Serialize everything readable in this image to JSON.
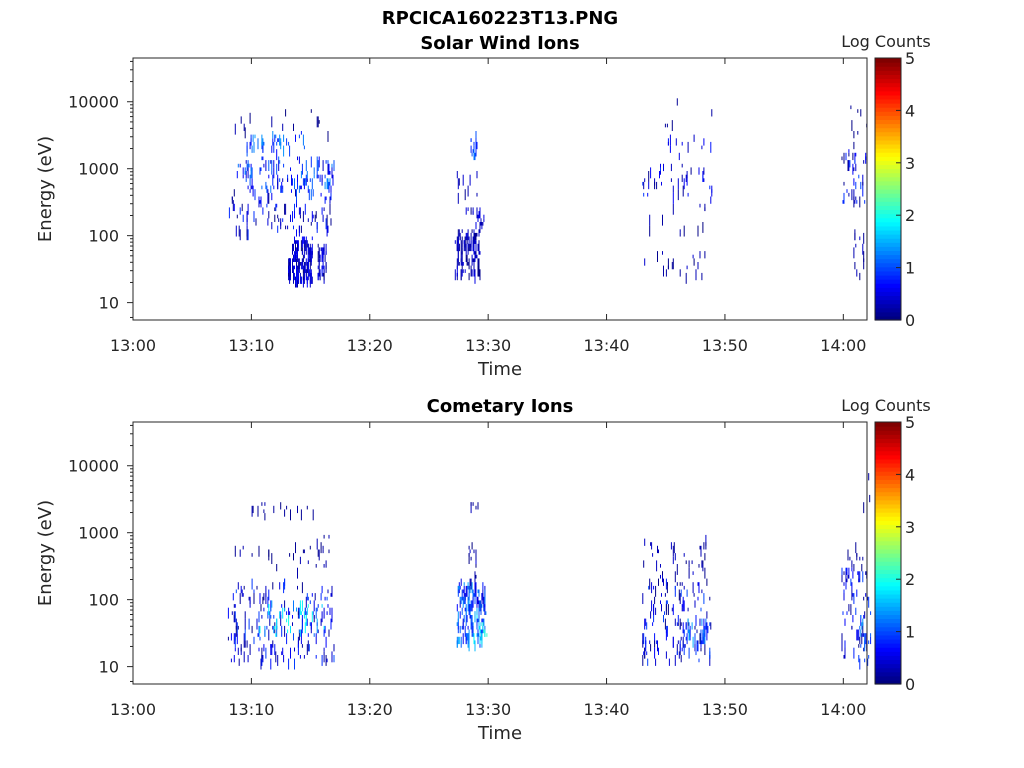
{
  "figure_title": "RPCICA160223T13.PNG",
  "colors": {
    "colormap": "jet",
    "axis": "#262626",
    "background": "#ffffff"
  },
  "chart_data": [
    {
      "type": "heatmap",
      "title": "Solar Wind Ions",
      "xlabel": "Time",
      "ylabel": "Energy (eV)",
      "yscale": "log",
      "xlim": [
        "13:00",
        "14:02"
      ],
      "ylim": [
        5.5,
        45000
      ],
      "x_ticks": [
        "13:00",
        "13:10",
        "13:20",
        "13:30",
        "13:40",
        "13:50",
        "14:00"
      ],
      "y_ticks": [
        "10",
        "100",
        "1000",
        "10000"
      ],
      "colorbar": {
        "label": "Log Counts",
        "range": [
          0,
          5
        ],
        "ticks": [
          "0",
          "1",
          "2",
          "3",
          "4",
          "5"
        ]
      },
      "clusters": [
        {
          "t": [
            13.1,
            13.3
          ],
          "e": [
            1.4,
            1.7
          ],
          "v": [
            0,
            0.6
          ],
          "n": 45
        },
        {
          "t": [
            13.4,
            15.1
          ],
          "e": [
            1.35,
            2.0
          ],
          "v": [
            0,
            0.7
          ],
          "n": 140
        },
        {
          "t": [
            15.6,
            16.3
          ],
          "e": [
            1.4,
            1.9
          ],
          "v": [
            0,
            0.7
          ],
          "n": 45
        },
        {
          "t": [
            8.0,
            17.0
          ],
          "e": [
            2.1,
            2.7
          ],
          "v": [
            0,
            0.9
          ],
          "n": 90
        },
        {
          "t": [
            8.5,
            17.0
          ],
          "e": [
            2.7,
            3.2
          ],
          "v": [
            0.3,
            1.3
          ],
          "n": 120
        },
        {
          "t": [
            9.5,
            14.5
          ],
          "e": [
            3.3,
            3.55
          ],
          "v": [
            0.6,
            1.4
          ],
          "n": 40
        },
        {
          "t": [
            8.0,
            16.5
          ],
          "e": [
            3.5,
            3.9
          ],
          "v": [
            0,
            0.3
          ],
          "n": 14
        },
        {
          "t": [
            27.2,
            29.3
          ],
          "e": [
            1.45,
            2.1
          ],
          "v": [
            0,
            0.5
          ],
          "n": 110
        },
        {
          "t": [
            28.1,
            29.6
          ],
          "e": [
            2.1,
            2.5
          ],
          "v": [
            0,
            0.5
          ],
          "n": 18
        },
        {
          "t": [
            28.5,
            29.0
          ],
          "e": [
            3.2,
            3.6
          ],
          "v": [
            0.5,
            1.3
          ],
          "n": 18
        },
        {
          "t": [
            27.3,
            29.3
          ],
          "e": [
            2.6,
            3.0
          ],
          "v": [
            0,
            0.4
          ],
          "n": 10
        },
        {
          "t": [
            43.0,
            48.5
          ],
          "e": [
            1.4,
            1.8
          ],
          "v": [
            0,
            0.4
          ],
          "n": 20
        },
        {
          "t": [
            43.5,
            48.5
          ],
          "e": [
            2.0,
            2.5
          ],
          "v": [
            0,
            0.3
          ],
          "n": 12
        },
        {
          "t": [
            43.0,
            49.0
          ],
          "e": [
            2.6,
            3.1
          ],
          "v": [
            0,
            0.9
          ],
          "n": 40
        },
        {
          "t": [
            44.5,
            49.0
          ],
          "e": [
            3.1,
            3.5
          ],
          "v": [
            0.2,
            0.8
          ],
          "n": 12
        },
        {
          "t": [
            44.0,
            49.0
          ],
          "e": [
            3.6,
            4.2
          ],
          "v": [
            0,
            0.2
          ],
          "n": 5
        },
        {
          "t": [
            59.8,
            62.0
          ],
          "e": [
            2.5,
            3.3
          ],
          "v": [
            0,
            1.0
          ],
          "n": 40
        },
        {
          "t": [
            60.8,
            61.8
          ],
          "e": [
            1.4,
            2.1
          ],
          "v": [
            0,
            0.4
          ],
          "n": 12
        },
        {
          "t": [
            60.5,
            62.0
          ],
          "e": [
            3.3,
            4.0
          ],
          "v": [
            0,
            0.2
          ],
          "n": 8
        }
      ]
    },
    {
      "type": "heatmap",
      "title": "Cometary Ions",
      "xlabel": "Time",
      "ylabel": "Energy (eV)",
      "yscale": "log",
      "xlim": [
        "13:00",
        "14:02"
      ],
      "ylim": [
        5.5,
        45000
      ],
      "x_ticks": [
        "13:00",
        "13:10",
        "13:20",
        "13:30",
        "13:40",
        "13:50",
        "14:00"
      ],
      "y_ticks": [
        "10",
        "100",
        "1000",
        "10000"
      ],
      "colorbar": {
        "label": "Log Counts",
        "range": [
          0,
          5
        ],
        "ticks": [
          "0",
          "1",
          "2",
          "3",
          "4",
          "5"
        ]
      },
      "clusters": [
        {
          "t": [
            8.0,
            17.0
          ],
          "e": [
            1.1,
            2.3
          ],
          "v": [
            0,
            1.0
          ],
          "n": 180
        },
        {
          "t": [
            10.5,
            16.5
          ],
          "e": [
            1.5,
            2.0
          ],
          "v": [
            0.8,
            2.0
          ],
          "n": 60
        },
        {
          "t": [
            8.5,
            16.5
          ],
          "e": [
            2.5,
            3.0
          ],
          "v": [
            0,
            0.3
          ],
          "n": 30
        },
        {
          "t": [
            10.0,
            15.5
          ],
          "e": [
            3.3,
            3.5
          ],
          "v": [
            0,
            0.3
          ],
          "n": 16
        },
        {
          "t": [
            27.3,
            29.8
          ],
          "e": [
            1.4,
            2.3
          ],
          "v": [
            0.4,
            1.5
          ],
          "n": 150
        },
        {
          "t": [
            28.5,
            29.9
          ],
          "e": [
            1.4,
            1.75
          ],
          "v": [
            1.2,
            2.2
          ],
          "n": 20
        },
        {
          "t": [
            28.3,
            29.0
          ],
          "e": [
            2.3,
            2.9
          ],
          "v": [
            0,
            0.5
          ],
          "n": 15
        },
        {
          "t": [
            28.5,
            29.3
          ],
          "e": [
            3.4,
            3.5
          ],
          "v": [
            0,
            0.3
          ],
          "n": 6
        },
        {
          "t": [
            43.0,
            48.8
          ],
          "e": [
            1.1,
            2.3
          ],
          "v": [
            0,
            1.0
          ],
          "n": 140
        },
        {
          "t": [
            46.5,
            48.5
          ],
          "e": [
            1.4,
            1.7
          ],
          "v": [
            0.6,
            1.6
          ],
          "n": 30
        },
        {
          "t": [
            43.0,
            48.5
          ],
          "e": [
            2.3,
            2.95
          ],
          "v": [
            0,
            0.4
          ],
          "n": 40
        },
        {
          "t": [
            59.8,
            62.3
          ],
          "e": [
            1.1,
            2.5
          ],
          "v": [
            0,
            1.0
          ],
          "n": 70
        },
        {
          "t": [
            61.3,
            62.3
          ],
          "e": [
            1.4,
            1.8
          ],
          "v": [
            0.6,
            1.5
          ],
          "n": 15
        },
        {
          "t": [
            60.3,
            61.8
          ],
          "e": [
            2.5,
            2.9
          ],
          "v": [
            0,
            0.3
          ],
          "n": 10
        },
        {
          "t": [
            61.2,
            62.3
          ],
          "e": [
            3.3,
            3.9
          ],
          "v": [
            0,
            0.2
          ],
          "n": 3
        }
      ]
    }
  ]
}
